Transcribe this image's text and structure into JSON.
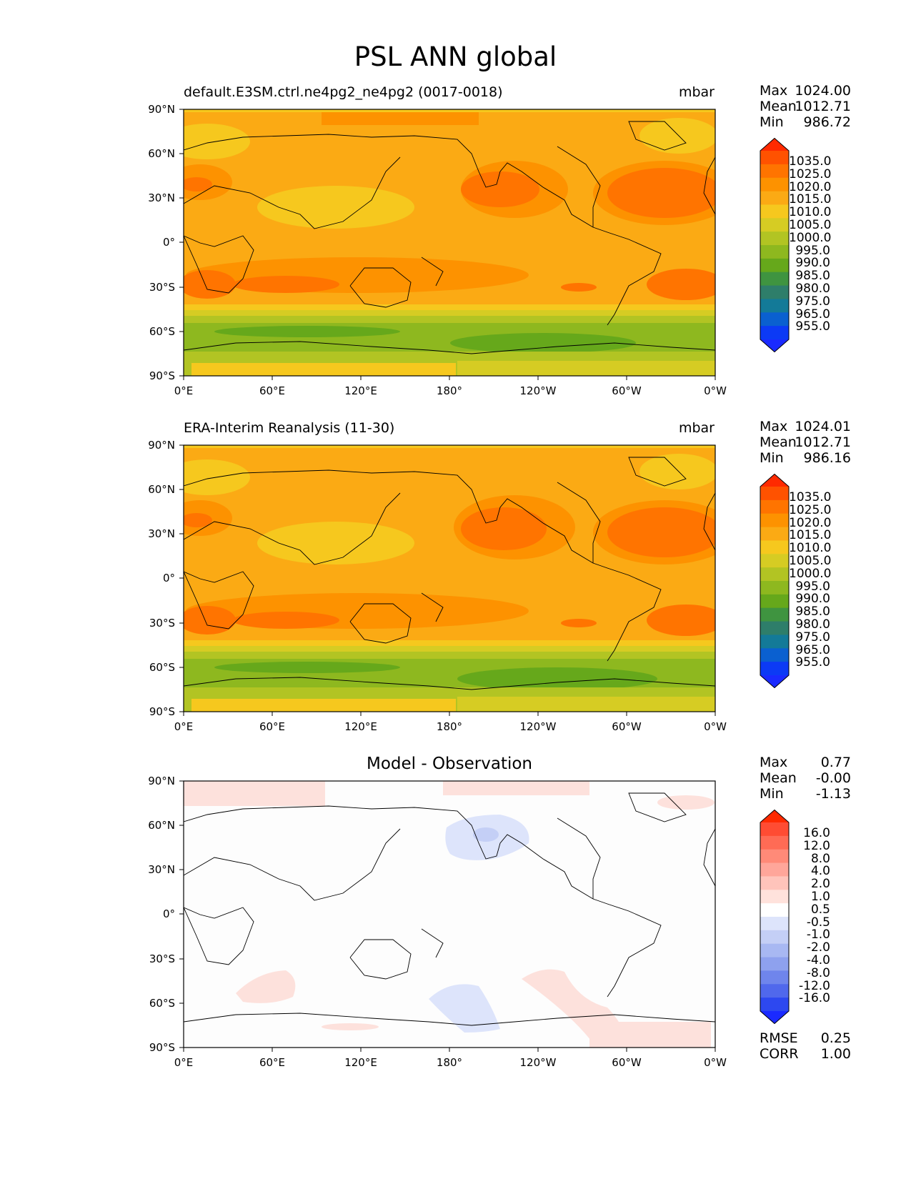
{
  "title": "PSL ANN global",
  "axes": {
    "lat_ticks": [
      "90°N",
      "60°N",
      "30°N",
      "0°",
      "30°S",
      "60°S",
      "90°S"
    ],
    "lon_ticks": [
      "0°E",
      "60°E",
      "120°E",
      "180°",
      "120°W",
      "60°W",
      "0°W"
    ]
  },
  "panels": [
    {
      "left_label": "default.E3SM.ctrl.ne4pg2_ne4pg2 (0017-0018)",
      "right_label": "mbar",
      "stats": [
        {
          "name": "Max",
          "value": "1024.00"
        },
        {
          "name": "Mean",
          "value": "1012.71"
        },
        {
          "name": "Min",
          "value": "986.72"
        }
      ],
      "colorbar_ticks": [
        "1035.0",
        "1025.0",
        "1020.0",
        "1015.0",
        "1010.0",
        "1005.0",
        "1000.0",
        "995.0",
        "990.0",
        "985.0",
        "980.0",
        "975.0",
        "965.0",
        "955.0"
      ]
    },
    {
      "left_label": "ERA-Interim Reanalysis (11-30)",
      "right_label": "mbar",
      "stats": [
        {
          "name": "Max",
          "value": "1024.01"
        },
        {
          "name": "Mean",
          "value": "1012.71"
        },
        {
          "name": "Min",
          "value": "986.16"
        }
      ],
      "colorbar_ticks": [
        "1035.0",
        "1025.0",
        "1020.0",
        "1015.0",
        "1010.0",
        "1005.0",
        "1000.0",
        "995.0",
        "990.0",
        "985.0",
        "980.0",
        "975.0",
        "965.0",
        "955.0"
      ]
    },
    {
      "center_title": "Model - Observation",
      "stats": [
        {
          "name": "Max",
          "value": "0.77"
        },
        {
          "name": "Mean",
          "value": "-0.00"
        },
        {
          "name": "Min",
          "value": "-1.13"
        }
      ],
      "colorbar_ticks": [
        "16.0",
        "12.0",
        "8.0",
        "4.0",
        "2.0",
        "1.0",
        "0.5",
        "-0.5",
        "-1.0",
        "-2.0",
        "-4.0",
        "-8.0",
        "-12.0",
        "-16.0"
      ],
      "error_stats": [
        {
          "name": "RMSE",
          "value": "0.25"
        },
        {
          "name": "CORR",
          "value": "1.00"
        }
      ]
    }
  ],
  "colors": {
    "psl_colorbar": [
      "#ff2a00",
      "#ff5200",
      "#ff7400",
      "#fd9200",
      "#fbaa14",
      "#f6c81e",
      "#d6cc23",
      "#b2c423",
      "#8eb81f",
      "#66a81b",
      "#3f9440",
      "#2e7e6a",
      "#137a98",
      "#0a60d0",
      "#0c3af5",
      "#1a2aff"
    ],
    "diff_colorbar": [
      "#ff2a00",
      "#ff4c33",
      "#ff6b55",
      "#ff8a78",
      "#ffa69a",
      "#ffc4bb",
      "#ffe2dc",
      "#ffffff",
      "#dde4fb",
      "#c4cff6",
      "#a8b8f2",
      "#8ea1ee",
      "#6f85ec",
      "#5068ec",
      "#2d48f0",
      "#1a2aff"
    ]
  }
}
